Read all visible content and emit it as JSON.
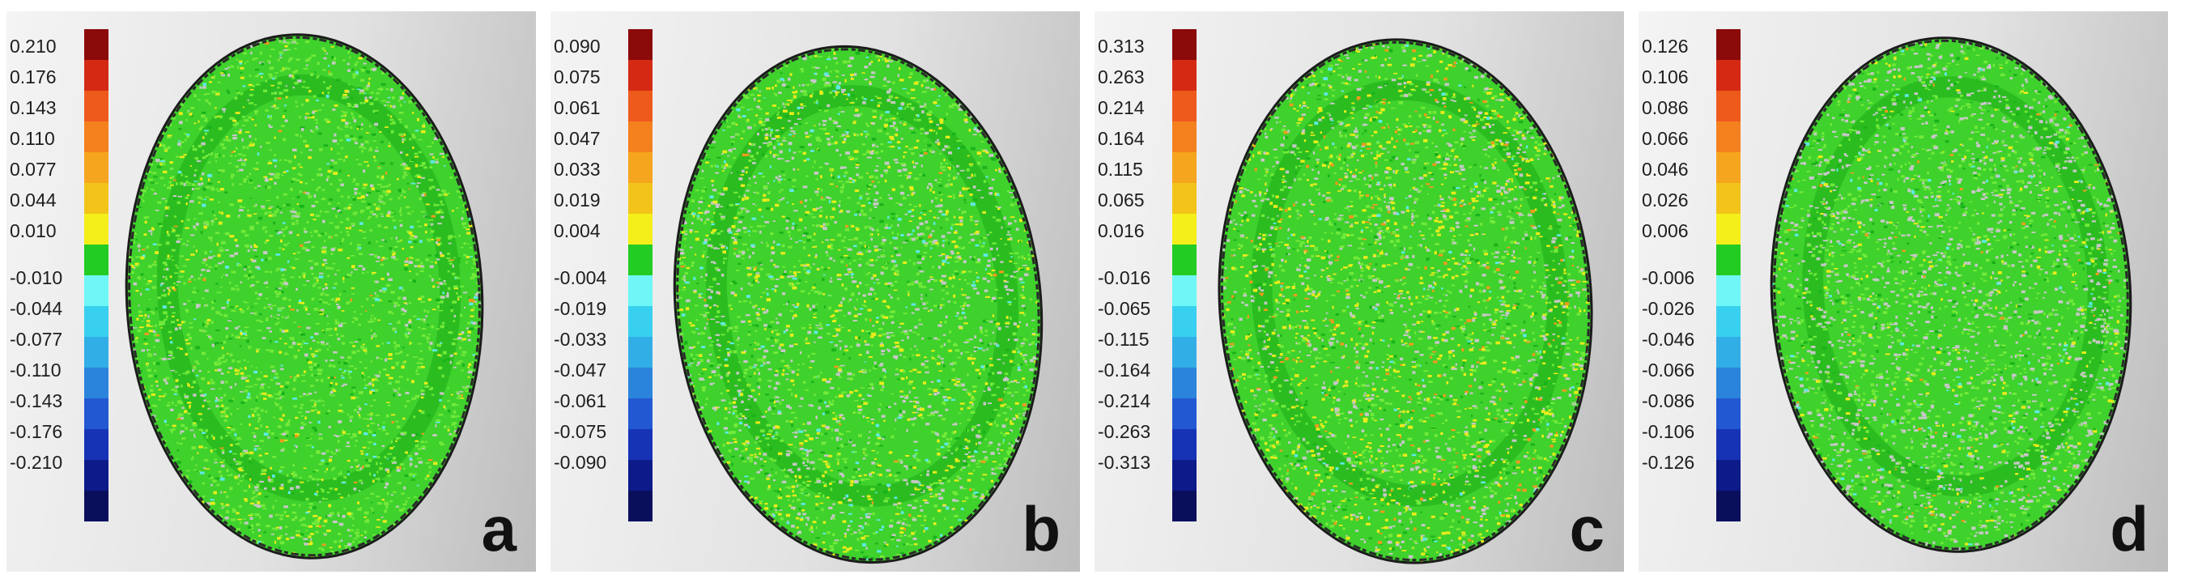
{
  "palette": [
    "#8b0a0a",
    "#d42a14",
    "#ee5a1c",
    "#f4801e",
    "#f6a51e",
    "#f2c41a",
    "#f4ee1a",
    "#22cc22",
    "#6ff6f6",
    "#38d0ee",
    "#32aee6",
    "#2a84dc",
    "#2259d2",
    "#1633b6",
    "#0d1a8a",
    "#0a0f5c"
  ],
  "panels": [
    {
      "letter": "a",
      "ticks": [
        "0.210",
        "0.176",
        "0.143",
        "0.110",
        "0.077",
        "0.044",
        "0.010",
        "-0.010",
        "-0.044",
        "-0.077",
        "-0.110",
        "-0.143",
        "-0.176",
        "-0.210"
      ]
    },
    {
      "letter": "b",
      "ticks": [
        "0.090",
        "0.075",
        "0.061",
        "0.047",
        "0.033",
        "0.019",
        "0.004",
        "-0.004",
        "-0.019",
        "-0.033",
        "-0.047",
        "-0.061",
        "-0.075",
        "-0.090"
      ]
    },
    {
      "letter": "c",
      "ticks": [
        "0.313",
        "0.263",
        "0.214",
        "0.164",
        "0.115",
        "0.065",
        "0.016",
        "-0.016",
        "-0.065",
        "-0.115",
        "-0.164",
        "-0.214",
        "-0.263",
        "-0.313"
      ]
    },
    {
      "letter": "d",
      "ticks": [
        "0.126",
        "0.106",
        "0.086",
        "0.066",
        "0.046",
        "0.026",
        "0.006",
        "-0.006",
        "-0.026",
        "-0.046",
        "-0.066",
        "-0.086",
        "-0.106",
        "-0.126"
      ]
    }
  ]
}
